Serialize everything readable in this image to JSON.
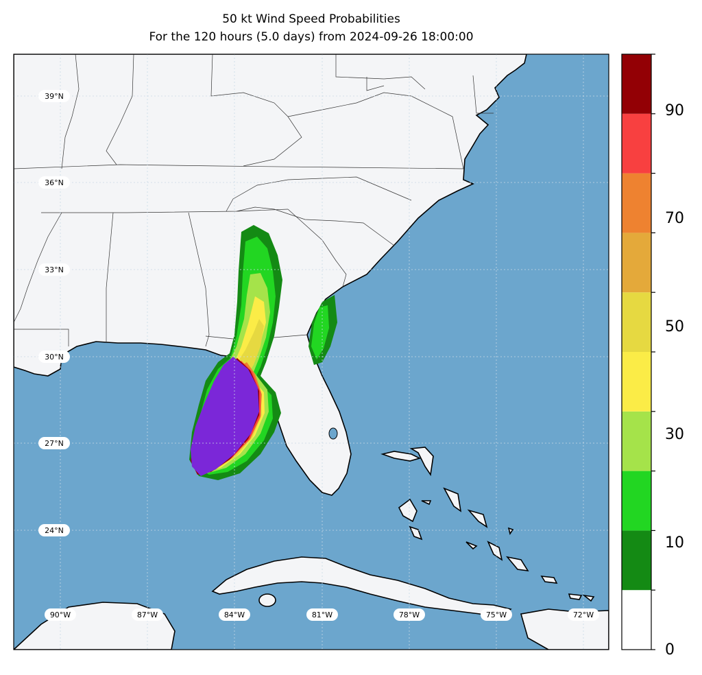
{
  "title": {
    "line1": "50 kt Wind Speed Probabilities",
    "line2": "For the 120 hours (5.0 days) from 2024-09-26 18:00:00"
  },
  "map": {
    "lat_labels": [
      "39°N",
      "36°N",
      "33°N",
      "30°N",
      "27°N",
      "24°N"
    ],
    "lon_labels": [
      "90°W",
      "87°W",
      "84°W",
      "81°W",
      "78°W",
      "75°W",
      "72°W"
    ],
    "colors": {
      "ocean": "#6ca6cd",
      "land": "#f4f5f7",
      "coast": "#000000",
      "border": "#333333",
      "grid": "#c9d9e6"
    }
  },
  "colorbar": {
    "tick_labels": [
      "0",
      "10",
      "30",
      "50",
      "70",
      "90"
    ],
    "levels": [
      0,
      10,
      20,
      30,
      40,
      50,
      60,
      70,
      80,
      90,
      100
    ],
    "colors": [
      "#ffffff",
      "#148a14",
      "#22d622",
      "#a5e34a",
      "#fbec47",
      "#e6d941",
      "#e4a93a",
      "#ee8230",
      "#f84040",
      "#930005",
      "#7b27d8"
    ]
  }
}
